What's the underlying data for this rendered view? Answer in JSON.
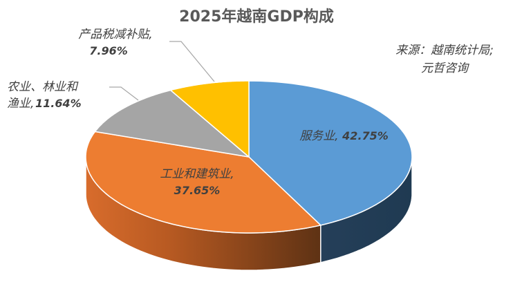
{
  "title": "2025年越南GDP构成",
  "source": {
    "line1": "来源：越南统计局;",
    "line2": "元哲咨询"
  },
  "labels": {
    "services": {
      "name": "服务业,",
      "value": "42.75%"
    },
    "industry": {
      "name": "工业和建筑业,",
      "value": "37.65%"
    },
    "agriculture": {
      "name_line1": "农业、林业和",
      "name_line2": "渔业,",
      "value": "11.64%"
    },
    "taxes": {
      "name": "产品税减补贴,",
      "value": "7.96%"
    }
  },
  "colors": {
    "services": "#5b9bd5",
    "services_side": "#223c55",
    "industry": "#ed7d31",
    "industry_side_start": "#c8622a",
    "industry_side_end": "#5e3214",
    "agriculture": "#a5a5a5",
    "taxes": "#ffc000"
  },
  "chart_data": {
    "type": "pie",
    "title": "2025年越南GDP构成",
    "subtitle": "来源：越南统计局; 元哲咨询",
    "three_d": true,
    "start_angle": "12 o'clock, clockwise",
    "categories": [
      "服务业",
      "工业和建筑业",
      "农业、林业和渔业",
      "产品税减补贴"
    ],
    "values": [
      42.75,
      37.65,
      11.64,
      7.96
    ],
    "unit": "%",
    "colors": [
      "#5b9bd5",
      "#ed7d31",
      "#a5a5a5",
      "#ffc000"
    ],
    "legend": "none (data labels on/near slices)"
  }
}
